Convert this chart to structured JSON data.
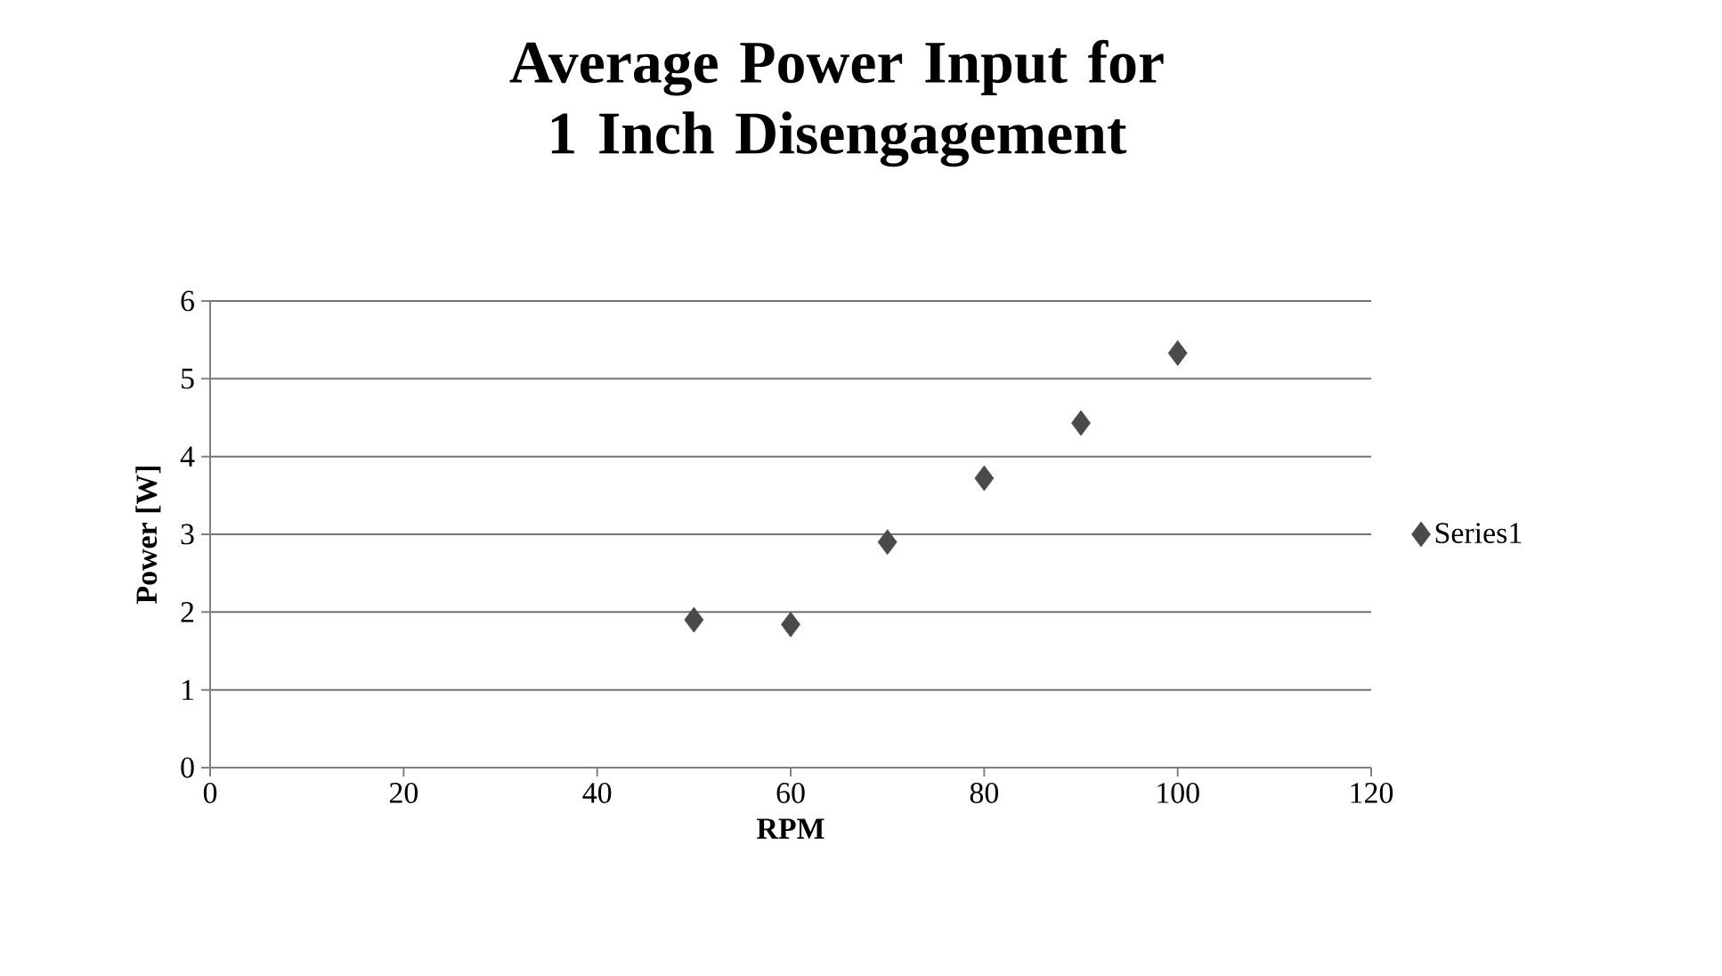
{
  "chart_data": {
    "type": "scatter",
    "title": "Average Power Input for 1 Inch Disengagement",
    "xlabel": "RPM",
    "ylabel": "Power [W]",
    "x": [
      50,
      60,
      70,
      80,
      90,
      100
    ],
    "series": [
      {
        "name": "Series1",
        "color": "#4a4a4a",
        "values": [
          1.9,
          1.84,
          2.9,
          3.72,
          4.43,
          5.33
        ]
      }
    ],
    "xlim": [
      0,
      120
    ],
    "xticks": [
      0,
      20,
      40,
      60,
      80,
      100,
      120
    ],
    "ylim": [
      0,
      6
    ],
    "yticks": [
      0,
      1,
      2,
      3,
      4,
      5,
      6
    ],
    "grid": "y",
    "legend": "right",
    "marker": "diamond"
  }
}
